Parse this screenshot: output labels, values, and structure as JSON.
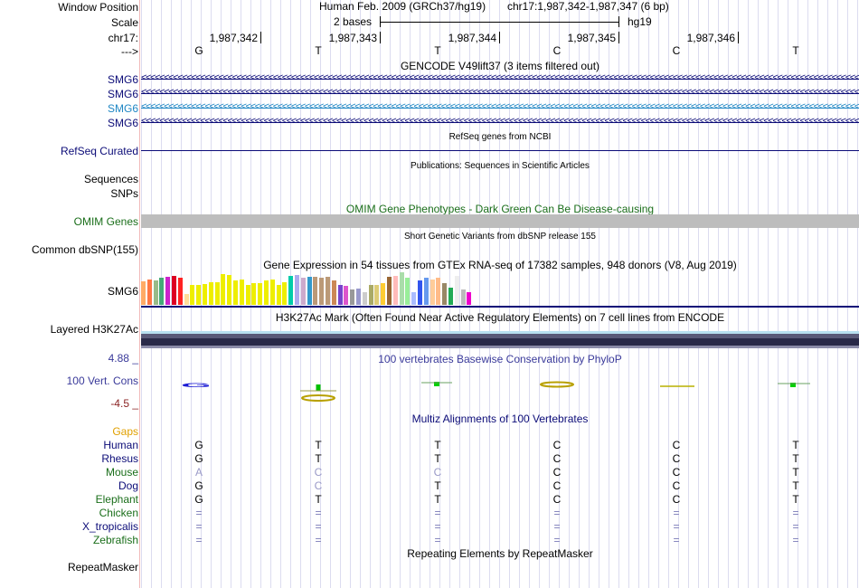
{
  "header": {
    "window_position_label": "Window Position",
    "scale_label": "Scale",
    "chrom_label": "chr17:",
    "strand_label": "--->",
    "assembly_title": "Human Feb. 2009 (GRCh37/hg19)",
    "position": "chr17:1,987,342-1,987,347 (6 bp)",
    "scale_text": "2 bases",
    "assembly": "hg19",
    "ruler_positions": [
      "1,987,342",
      "1,987,343",
      "1,987,344",
      "1,987,345",
      "1,987,346"
    ],
    "bases": [
      "G",
      "T",
      "T",
      "C",
      "C",
      "T"
    ]
  },
  "gencode": {
    "title": "GENCODE V49lift37 (3 items filtered out)",
    "tracks": [
      "SMG6",
      "SMG6",
      "SMG6",
      "SMG6"
    ],
    "colors": [
      "#0c0c78",
      "#0c0c78",
      "#1e86c4",
      "#0c0c78"
    ]
  },
  "refseq": {
    "title": "RefSeq genes from NCBI",
    "label": "RefSeq Curated"
  },
  "publications": {
    "title": "Publications: Sequences in Scientific Articles",
    "label1": "Sequences",
    "label2": "SNPs"
  },
  "omim": {
    "title": "OMIM Gene Phenotypes - Dark Green Can Be Disease-causing",
    "label": "OMIM Genes"
  },
  "dbsnp": {
    "title": "Short Genetic Variants from dbSNP release 155",
    "label": "Common dbSNP(155)"
  },
  "gtex": {
    "title": "Gene Expression in 54 tissues from GTEx RNA-seq of 17382 samples, 948 donors (V8, Aug 2019)",
    "label": "SMG6",
    "values": [
      0.72,
      0.78,
      0.74,
      0.84,
      0.86,
      0.88,
      0.84,
      0.32,
      0.62,
      0.62,
      0.64,
      0.7,
      0.7,
      0.95,
      0.92,
      0.74,
      0.78,
      0.62,
      0.66,
      0.68,
      0.74,
      0.78,
      0.6,
      0.7,
      0.88,
      0.93,
      0.82,
      0.86,
      0.86,
      0.84,
      0.85,
      0.76,
      0.62,
      0.58,
      0.46,
      0.5,
      0.4,
      0.6,
      0.62,
      0.68,
      0.86,
      0.88,
      1.0,
      0.82,
      0.4,
      0.76,
      0.84,
      0.78,
      0.84,
      0.68,
      0.54,
      0.9,
      0.48,
      0.4
    ],
    "colors": [
      "#ffaa66",
      "#ff7744",
      "#99bb88",
      "#44aa77",
      "#cc22cc",
      "#dd0022",
      "#ff2222",
      "#ffdd99",
      "#eeee00",
      "#eeee00",
      "#eeee00",
      "#eeee00",
      "#eeee00",
      "#eeee00",
      "#eeee00",
      "#eeee00",
      "#eeee00",
      "#eeee00",
      "#eeee00",
      "#eeee00",
      "#eeee00",
      "#eeee00",
      "#eeee00",
      "#eeee00",
      "#00ccaa",
      "#aaaaee",
      "#ccaacc",
      "#3399cc",
      "#bb9977",
      "#bb9977",
      "#bb9977",
      "#cc8855",
      "#7744cc",
      "#dd55cc",
      "#999999",
      "#9999cc",
      "#cccccc",
      "#aaaa66",
      "#ddcc77",
      "#ffcc33",
      "#996633",
      "#ffbbbb",
      "#aaddaa",
      "#99ee99",
      "#aabbff",
      "#3355ee",
      "#6699ee",
      "#ffcc99",
      "#ffbb88",
      "#998866",
      "#22aa55",
      "#eeeeee",
      "#bbbbbb",
      "#ee00cc"
    ]
  },
  "h3k27ac": {
    "title": "H3K27Ac Mark (Often Found Near Active Regulatory Elements) on 7 cell lines from ENCODE",
    "label": "Layered H3K27Ac"
  },
  "phylop": {
    "title": "100 vertebrates Basewise Conservation by PhyloP",
    "label": "100 Vert. Cons",
    "max_label": "4.88 _",
    "min_label": "-4.5 _"
  },
  "multiz": {
    "title": "Multiz Alignments of 100 Vertebrates",
    "gaps_label": "Gaps",
    "species": [
      {
        "name": "Human",
        "bases": [
          "G",
          "T",
          "T",
          "C",
          "C",
          "T"
        ],
        "color": "#0c0c78"
      },
      {
        "name": "Rhesus",
        "bases": [
          "G",
          "T",
          "T",
          "C",
          "C",
          "T"
        ],
        "color": "#0c0c78"
      },
      {
        "name": "Mouse",
        "bases": [
          "A",
          "C",
          "C",
          "C",
          "C",
          "T"
        ],
        "color": "#1a6e1a"
      },
      {
        "name": "Dog",
        "bases": [
          "G",
          "C",
          "T",
          "C",
          "C",
          "T"
        ],
        "color": "#0c0c78"
      },
      {
        "name": "Elephant",
        "bases": [
          "G",
          "T",
          "T",
          "C",
          "C",
          "T"
        ],
        "color": "#1a6e1a"
      },
      {
        "name": "Chicken",
        "bases": [
          "=",
          "=",
          "=",
          "=",
          "=",
          "="
        ],
        "color": "#1a6e1a"
      },
      {
        "name": "X_tropicalis",
        "bases": [
          "=",
          "=",
          "=",
          "=",
          "=",
          "="
        ],
        "color": "#0c0c78"
      },
      {
        "name": "Zebrafish",
        "bases": [
          "=",
          "=",
          "=",
          "=",
          "=",
          "="
        ],
        "color": "#1a6e1a"
      }
    ]
  },
  "repeatmasker": {
    "title": "Repeating Elements by RepeatMasker",
    "label": "RepeatMasker"
  }
}
